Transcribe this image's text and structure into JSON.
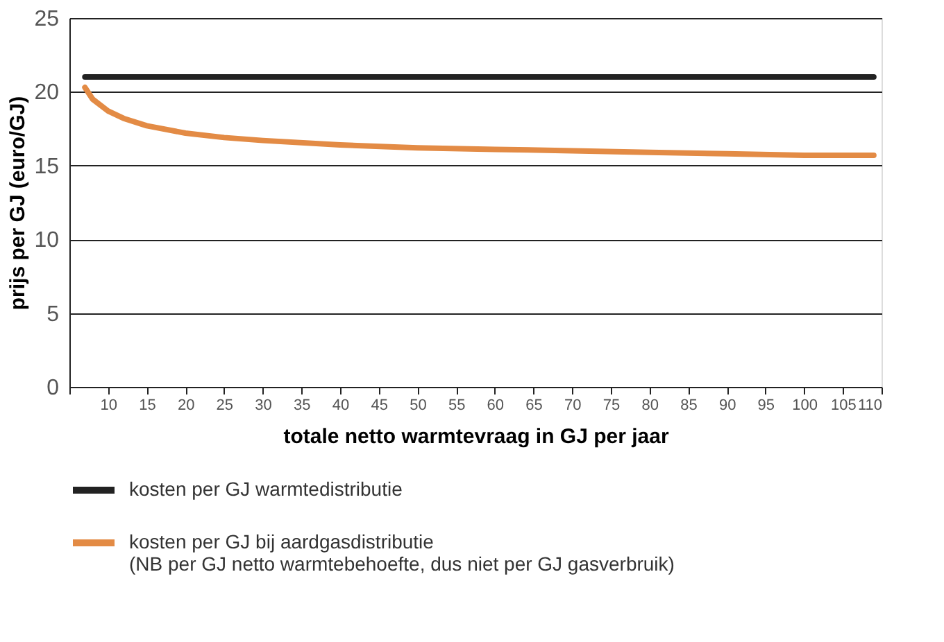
{
  "chart_data": {
    "type": "line",
    "xlabel": "totale netto warmtevraag in GJ per jaar",
    "ylabel": "prijs per GJ (euro/GJ)",
    "series": [
      {
        "name": "kosten per GJ warmtedistributie",
        "color": "#222222",
        "x": [
          7,
          109
        ],
        "values": [
          21,
          21
        ]
      },
      {
        "name": "kosten per GJ bij aardgasdistributie\n(NB per GJ netto warmtebehoefte, dus niet per GJ gasverbruik)",
        "color": "#e38b45",
        "x": [
          7,
          8,
          10,
          12,
          15,
          20,
          25,
          30,
          40,
          50,
          60,
          70,
          80,
          90,
          100,
          109
        ],
        "values": [
          20.3,
          19.5,
          18.7,
          18.2,
          17.7,
          17.2,
          16.9,
          16.7,
          16.4,
          16.2,
          16.1,
          16.0,
          15.9,
          15.8,
          15.7,
          15.7
        ]
      }
    ],
    "xlim": [
      5,
      110
    ],
    "xticks": [
      {
        "value": 5,
        "label": null
      },
      10,
      15,
      20,
      25,
      30,
      35,
      40,
      45,
      50,
      55,
      60,
      65,
      70,
      75,
      80,
      85,
      90,
      95,
      100,
      105,
      110
    ],
    "ylim": [
      0,
      25
    ],
    "yticks": [
      0,
      5,
      10,
      15,
      20,
      25
    ],
    "grid": "y",
    "legend": "bottom",
    "line_style": "solid",
    "marker": "none"
  }
}
